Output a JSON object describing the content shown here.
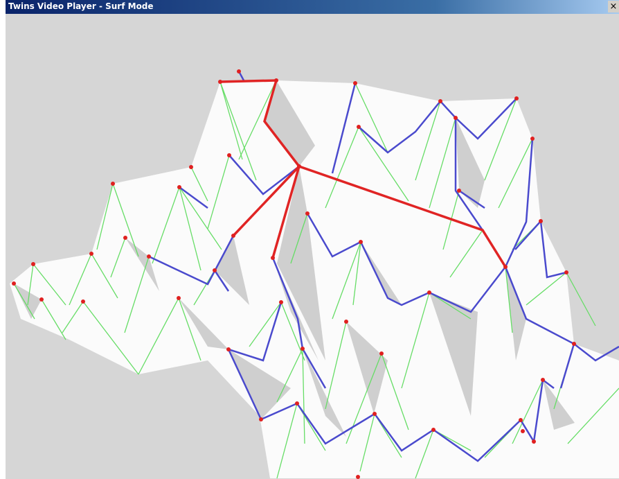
{
  "window": {
    "title": "Twins Video Player - Surf Mode",
    "close_label": "×"
  }
}
